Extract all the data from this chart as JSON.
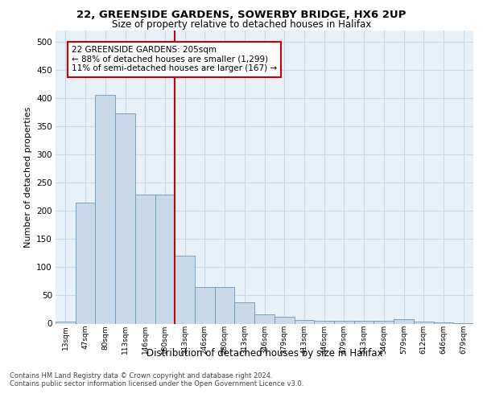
{
  "title_line1": "22, GREENSIDE GARDENS, SOWERBY BRIDGE, HX6 2UP",
  "title_line2": "Size of property relative to detached houses in Halifax",
  "xlabel": "Distribution of detached houses by size in Halifax",
  "ylabel": "Number of detached properties",
  "categories": [
    "13sqm",
    "47sqm",
    "80sqm",
    "113sqm",
    "146sqm",
    "180sqm",
    "213sqm",
    "246sqm",
    "280sqm",
    "313sqm",
    "346sqm",
    "379sqm",
    "413sqm",
    "446sqm",
    "479sqm",
    "513sqm",
    "546sqm",
    "579sqm",
    "612sqm",
    "646sqm",
    "679sqm"
  ],
  "values": [
    3,
    215,
    405,
    372,
    228,
    228,
    120,
    65,
    65,
    38,
    17,
    12,
    6,
    5,
    5,
    5,
    5,
    8,
    3,
    2,
    1
  ],
  "bar_color": "#c8d9ea",
  "bar_edge_color": "#6699bb",
  "vline_x_index": 6,
  "vline_color": "#cc0000",
  "annotation_text": "22 GREENSIDE GARDENS: 205sqm\n← 88% of detached houses are smaller (1,299)\n11% of semi-detached houses are larger (167) →",
  "annotation_box_color": "#ffffff",
  "annotation_box_edge": "#cc0000",
  "grid_color": "#c8d9ea",
  "background_color": "#e8f0f8",
  "ylim": [
    0,
    520
  ],
  "yticks": [
    0,
    50,
    100,
    150,
    200,
    250,
    300,
    350,
    400,
    450,
    500
  ],
  "footnote_line1": "Contains HM Land Registry data © Crown copyright and database right 2024.",
  "footnote_line2": "Contains public sector information licensed under the Open Government Licence v3.0."
}
